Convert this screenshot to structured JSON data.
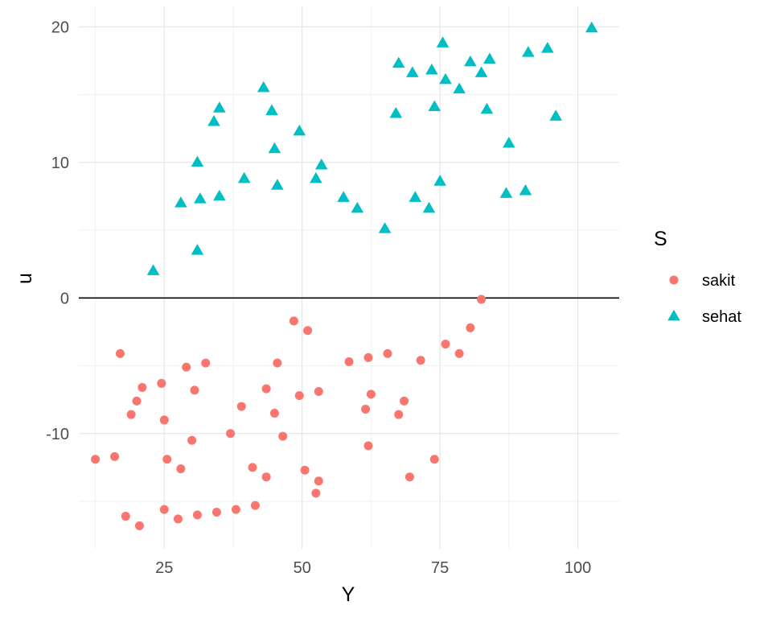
{
  "chart_data": {
    "type": "scatter",
    "title": "",
    "xlabel": "Y",
    "ylabel": "u",
    "xlim": [
      9.5,
      107.5
    ],
    "ylim": [
      -18.5,
      21.5
    ],
    "x_ticks": [
      25,
      50,
      75,
      100
    ],
    "y_ticks": [
      -10,
      0,
      10,
      20
    ],
    "x_minor_ticks": [
      12.5,
      37.5,
      62.5,
      87.5
    ],
    "y_minor_ticks": [
      -15,
      -5,
      5,
      15
    ],
    "grid": true,
    "reference_line": {
      "y": 0,
      "color": "#000000"
    },
    "legend": {
      "title": "S",
      "position": "right"
    },
    "series": [
      {
        "name": "sakit",
        "color": "#F8766D",
        "shape": "circle",
        "points": [
          [
            12.5,
            -11.9
          ],
          [
            16,
            -11.7
          ],
          [
            17,
            -4.1
          ],
          [
            18,
            -16.1
          ],
          [
            19,
            -8.6
          ],
          [
            20,
            -7.6
          ],
          [
            20.5,
            -16.8
          ],
          [
            21,
            -6.6
          ],
          [
            24.5,
            -6.3
          ],
          [
            25,
            -9.0
          ],
          [
            25,
            -15.6
          ],
          [
            25.5,
            -11.9
          ],
          [
            27.5,
            -16.3
          ],
          [
            28,
            -12.6
          ],
          [
            29,
            -5.1
          ],
          [
            30,
            -10.5
          ],
          [
            30.5,
            -6.8
          ],
          [
            31,
            -16.0
          ],
          [
            32.5,
            -4.8
          ],
          [
            34.5,
            -15.8
          ],
          [
            37,
            -10.0
          ],
          [
            38,
            -15.6
          ],
          [
            39,
            -8.0
          ],
          [
            41,
            -12.5
          ],
          [
            41.5,
            -15.3
          ],
          [
            43.5,
            -6.7
          ],
          [
            43.5,
            -13.2
          ],
          [
            45,
            -8.5
          ],
          [
            45.5,
            -4.8
          ],
          [
            46.5,
            -10.2
          ],
          [
            48.5,
            -1.7
          ],
          [
            49.5,
            -7.2
          ],
          [
            50.5,
            -12.7
          ],
          [
            51,
            -2.4
          ],
          [
            52.5,
            -14.4
          ],
          [
            53,
            -6.9
          ],
          [
            53,
            -13.5
          ],
          [
            58.5,
            -4.7
          ],
          [
            61.5,
            -8.2
          ],
          [
            62,
            -10.9
          ],
          [
            62,
            -4.4
          ],
          [
            62.5,
            -7.1
          ],
          [
            65.5,
            -4.1
          ],
          [
            67.5,
            -8.6
          ],
          [
            68.5,
            -7.6
          ],
          [
            69.5,
            -13.2
          ],
          [
            71.5,
            -4.6
          ],
          [
            74,
            -11.9
          ],
          [
            76,
            -3.4
          ],
          [
            78.5,
            -4.1
          ],
          [
            80.5,
            -2.2
          ],
          [
            82.5,
            -0.1
          ]
        ]
      },
      {
        "name": "sehat",
        "color": "#00BFC4",
        "shape": "triangle",
        "points": [
          [
            23,
            2.0
          ],
          [
            28,
            7.0
          ],
          [
            31,
            3.5
          ],
          [
            31,
            10.0
          ],
          [
            31.5,
            7.3
          ],
          [
            34,
            13.0
          ],
          [
            35,
            14.0
          ],
          [
            35,
            7.5
          ],
          [
            39.5,
            8.8
          ],
          [
            43,
            15.5
          ],
          [
            44.5,
            13.8
          ],
          [
            45,
            11.0
          ],
          [
            45.5,
            8.3
          ],
          [
            49.5,
            12.3
          ],
          [
            52.5,
            8.8
          ],
          [
            53.5,
            9.8
          ],
          [
            57.5,
            7.4
          ],
          [
            60,
            6.6
          ],
          [
            65,
            5.1
          ],
          [
            67,
            13.6
          ],
          [
            67.5,
            17.3
          ],
          [
            70,
            16.6
          ],
          [
            70.5,
            7.4
          ],
          [
            73,
            6.6
          ],
          [
            73.5,
            16.8
          ],
          [
            74,
            14.1
          ],
          [
            75,
            8.6
          ],
          [
            75.5,
            18.8
          ],
          [
            76,
            16.1
          ],
          [
            78.5,
            15.4
          ],
          [
            80.5,
            17.4
          ],
          [
            82.5,
            16.6
          ],
          [
            83.5,
            13.9
          ],
          [
            84,
            17.6
          ],
          [
            87,
            7.7
          ],
          [
            87.5,
            11.4
          ],
          [
            90.5,
            7.9
          ],
          [
            91,
            18.1
          ],
          [
            94.5,
            18.4
          ],
          [
            96,
            13.4
          ],
          [
            102.5,
            19.9
          ]
        ]
      }
    ]
  }
}
